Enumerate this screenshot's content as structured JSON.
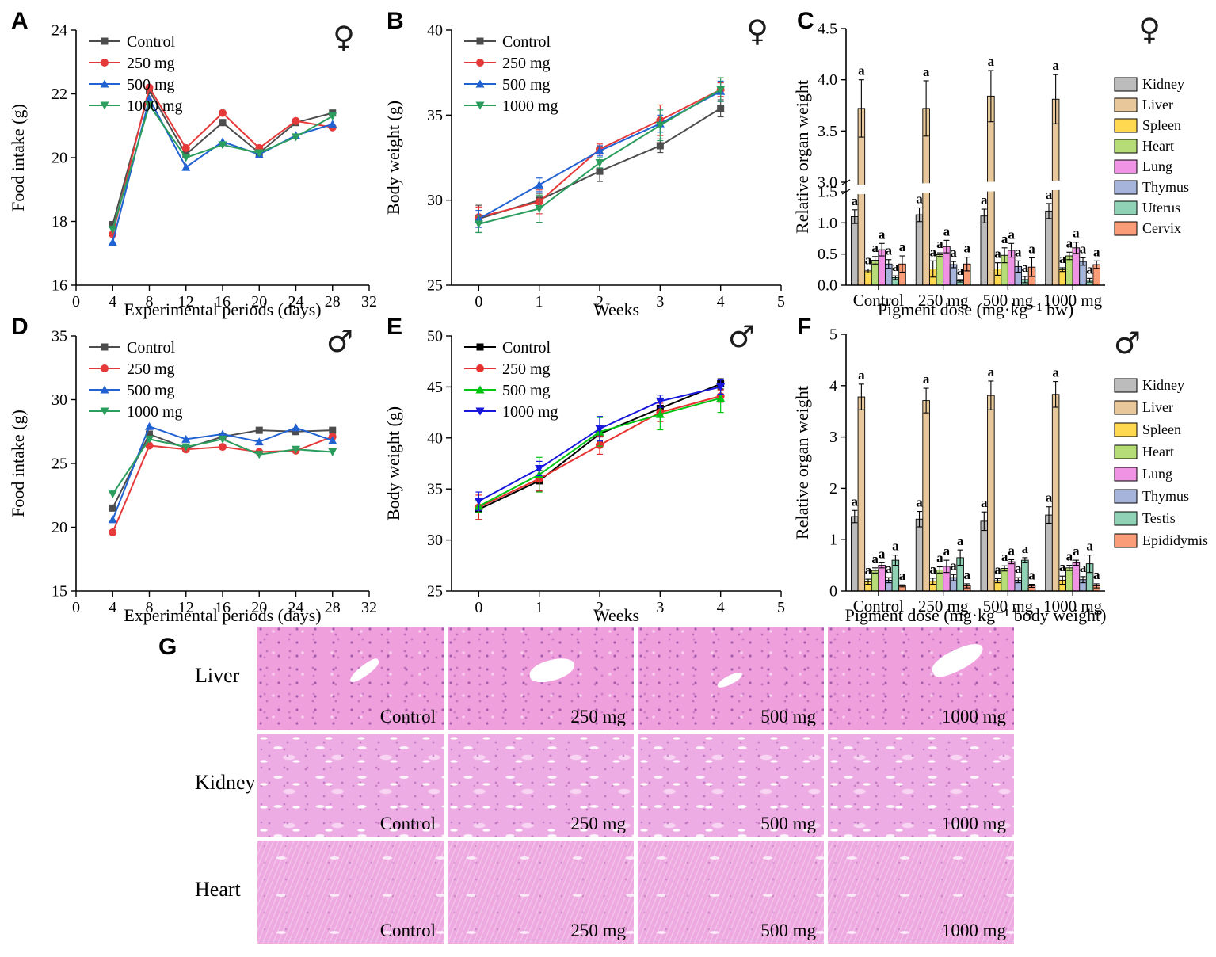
{
  "chart_data": [
    {
      "panel": "A",
      "type": "line",
      "sex_icon": "♀",
      "xlabel": "Experimental periods (days)",
      "ylabel": "Food intake (g)",
      "xlim": [
        0,
        32
      ],
      "xticks": [
        0,
        4,
        8,
        12,
        16,
        20,
        24,
        28,
        32
      ],
      "ylim": [
        16,
        24
      ],
      "yticks": [
        16,
        18,
        20,
        22,
        24
      ],
      "ydec": 0,
      "x": [
        4,
        8,
        12,
        16,
        20,
        24,
        28
      ],
      "series": [
        {
          "name": "Control",
          "color": "#4d4d4d",
          "marker": "square",
          "values": [
            17.9,
            22.1,
            20.1,
            21.1,
            20.15,
            21.1,
            21.4
          ]
        },
        {
          "name": "250 mg",
          "color": "#e63a3a",
          "marker": "circle",
          "values": [
            17.6,
            22.2,
            20.3,
            21.4,
            20.3,
            21.15,
            20.95
          ]
        },
        {
          "name": "500 mg",
          "color": "#2062d2",
          "marker": "triangle-up",
          "values": [
            17.35,
            21.85,
            19.7,
            20.5,
            20.1,
            20.7,
            21.05
          ]
        },
        {
          "name": "1000 mg",
          "color": "#2b9e5e",
          "marker": "triangle-down",
          "values": [
            17.75,
            21.65,
            20.0,
            20.4,
            20.15,
            20.65,
            21.3
          ]
        }
      ]
    },
    {
      "panel": "B",
      "type": "line",
      "sex_icon": "♀",
      "xlabel": "Weeks",
      "ylabel": "Body weight (g)",
      "xlim": [
        -0.45,
        5
      ],
      "xticks": [
        0,
        1,
        2,
        3,
        4,
        5
      ],
      "ylim": [
        25,
        40
      ],
      "yticks": [
        25,
        30,
        35,
        40
      ],
      "ydec": 0,
      "x": [
        0,
        1,
        2,
        3,
        4
      ],
      "series": [
        {
          "name": "Control",
          "color": "#4d4d4d",
          "marker": "square",
          "values": [
            28.9,
            30.0,
            31.7,
            33.2,
            35.4
          ],
          "err": [
            0.8,
            0.4,
            0.6,
            0.4,
            0.5
          ]
        },
        {
          "name": "250 mg",
          "color": "#e63a3a",
          "marker": "circle",
          "values": [
            29.0,
            29.9,
            33.0,
            34.7,
            36.5
          ],
          "err": [
            0.6,
            0.7,
            0.3,
            0.9,
            0.4
          ]
        },
        {
          "name": "500 mg",
          "color": "#2062d2",
          "marker": "triangle-up",
          "values": [
            28.9,
            30.9,
            32.9,
            34.5,
            36.4
          ],
          "err": [
            0.5,
            0.4,
            0.3,
            0.5,
            0.6
          ]
        },
        {
          "name": "1000 mg",
          "color": "#2b9e5e",
          "marker": "triangle-down",
          "values": [
            28.6,
            29.5,
            32.2,
            34.4,
            36.5
          ],
          "err": [
            0.5,
            0.8,
            0.3,
            0.9,
            0.7
          ]
        }
      ]
    },
    {
      "panel": "C",
      "type": "bar",
      "sex_icon": "♀",
      "xlabel": "Pigment dose (mg·kg⁻¹ bw)",
      "ylabel": "Relative organ weight",
      "categories": [
        "Control",
        "250 mg",
        "500 mg",
        "1000 mg"
      ],
      "ydec": 1,
      "sig": "a",
      "ybreak": {
        "lower_max": 1.5,
        "upper_min": 3.0,
        "upper_max": 4.5,
        "yticks_lower": [
          0.0,
          0.5,
          1.0,
          1.5
        ],
        "yticks_upper": [
          3.0,
          3.5,
          4.0,
          4.5
        ]
      },
      "series": [
        {
          "name": "Kidney",
          "color": "#bcbcbc",
          "values": [
            1.1,
            1.13,
            1.11,
            1.19
          ],
          "err": [
            0.11,
            0.11,
            0.11,
            0.12
          ]
        },
        {
          "name": "Liver",
          "color": "#e8c89a",
          "values": [
            3.72,
            3.72,
            3.84,
            3.81
          ],
          "err": [
            0.28,
            0.27,
            0.25,
            0.24
          ]
        },
        {
          "name": "Spleen",
          "color": "#ffd94f",
          "values": [
            0.23,
            0.26,
            0.26,
            0.25
          ],
          "err": [
            0.03,
            0.13,
            0.1,
            0.03
          ]
        },
        {
          "name": "Heart",
          "color": "#b6dc77",
          "values": [
            0.4,
            0.49,
            0.48,
            0.47
          ],
          "err": [
            0.06,
            0.03,
            0.12,
            0.06
          ]
        },
        {
          "name": "Lung",
          "color": "#f093e5",
          "values": [
            0.57,
            0.62,
            0.56,
            0.6
          ],
          "err": [
            0.1,
            0.1,
            0.11,
            0.09
          ]
        },
        {
          "name": "Thymus",
          "color": "#a6b3da",
          "values": [
            0.34,
            0.33,
            0.3,
            0.38
          ],
          "err": [
            0.07,
            0.05,
            0.09,
            0.06
          ]
        },
        {
          "name": "Uterus",
          "color": "#90d2b6",
          "values": [
            0.12,
            0.07,
            0.09,
            0.08
          ],
          "err": [
            0.03,
            0.02,
            0.05,
            0.03
          ]
        },
        {
          "name": "Cervix",
          "color": "#fb9c78",
          "values": [
            0.34,
            0.34,
            0.29,
            0.33
          ],
          "err": [
            0.13,
            0.11,
            0.15,
            0.06
          ]
        }
      ]
    },
    {
      "panel": "D",
      "type": "line",
      "sex_icon": "♂",
      "xlabel": "Experimental periods (days)",
      "ylabel": "Food intake (g)",
      "xlim": [
        0,
        32
      ],
      "xticks": [
        0,
        4,
        8,
        12,
        16,
        20,
        24,
        28,
        32
      ],
      "ylim": [
        15,
        35
      ],
      "yticks": [
        15,
        20,
        25,
        30,
        35
      ],
      "ydec": 0,
      "x": [
        4,
        8,
        12,
        16,
        20,
        24,
        28
      ],
      "series": [
        {
          "name": "Control",
          "color": "#4d4d4d",
          "marker": "square",
          "values": [
            21.5,
            27.3,
            26.2,
            27.1,
            27.6,
            27.5,
            27.6
          ]
        },
        {
          "name": "250 mg",
          "color": "#e63a3a",
          "marker": "circle",
          "values": [
            19.6,
            26.4,
            26.1,
            26.3,
            25.9,
            26.0,
            27.1
          ]
        },
        {
          "name": "500 mg",
          "color": "#2062d2",
          "marker": "triangle-up",
          "values": [
            20.6,
            27.9,
            26.9,
            27.3,
            26.7,
            27.8,
            26.8
          ]
        },
        {
          "name": "1000 mg",
          "color": "#2b9e5e",
          "marker": "triangle-down",
          "values": [
            22.6,
            26.9,
            26.3,
            26.9,
            25.7,
            26.1,
            25.9
          ]
        }
      ]
    },
    {
      "panel": "E",
      "type": "line",
      "sex_icon": "♂",
      "xlabel": "Weeks",
      "ylabel": "Body weight (g)",
      "xlim": [
        -0.45,
        5
      ],
      "xticks": [
        0,
        1,
        2,
        3,
        4,
        5
      ],
      "ylim": [
        25,
        50
      ],
      "yticks": [
        25,
        30,
        35,
        40,
        45,
        50
      ],
      "ydec": 0,
      "x": [
        0,
        1,
        2,
        3,
        4
      ],
      "series": [
        {
          "name": "Control",
          "color": "#000000",
          "marker": "square",
          "values": [
            33.0,
            35.8,
            40.4,
            42.9,
            45.3
          ],
          "err": [
            1.0,
            1.0,
            0.8,
            0.8,
            0.5
          ]
        },
        {
          "name": "250 mg",
          "color": "#e8312e",
          "marker": "circle",
          "values": [
            33.2,
            36.0,
            39.3,
            42.5,
            44.1
          ],
          "err": [
            1.2,
            1.2,
            0.9,
            0.9,
            0.6
          ]
        },
        {
          "name": "500 mg",
          "color": "#00c613",
          "marker": "triangle-up",
          "values": [
            33.3,
            36.4,
            40.6,
            42.3,
            43.9
          ],
          "err": [
            0.6,
            1.7,
            1.4,
            1.5,
            1.4
          ]
        },
        {
          "name": "1000 mg",
          "color": "#1717dd",
          "marker": "triangle-down",
          "values": [
            33.8,
            37.0,
            40.9,
            43.6,
            45.0
          ],
          "err": [
            0.9,
            0.7,
            1.2,
            0.6,
            0.7
          ]
        }
      ]
    },
    {
      "panel": "F",
      "type": "bar",
      "sex_icon": "♂",
      "xlabel": "Pigment dose (mg·kg⁻¹ body weight)",
      "ylabel": "Relative organ weight",
      "categories": [
        "Control",
        "250 mg",
        "500 mg",
        "1000 mg"
      ],
      "ylim": [
        0,
        5
      ],
      "yticks": [
        0,
        1,
        2,
        3,
        4,
        5
      ],
      "ydec": 0,
      "sig": "a",
      "series": [
        {
          "name": "Kidney",
          "color": "#bcbcbc",
          "values": [
            1.45,
            1.4,
            1.36,
            1.48
          ],
          "err": [
            0.12,
            0.15,
            0.18,
            0.16
          ]
        },
        {
          "name": "Liver",
          "color": "#e8c89a",
          "values": [
            3.78,
            3.71,
            3.81,
            3.83
          ],
          "err": [
            0.25,
            0.24,
            0.28,
            0.25
          ]
        },
        {
          "name": "Spleen",
          "color": "#ffd94f",
          "values": [
            0.18,
            0.19,
            0.2,
            0.21
          ],
          "err": [
            0.05,
            0.06,
            0.04,
            0.08
          ]
        },
        {
          "name": "Heart",
          "color": "#b6dc77",
          "values": [
            0.4,
            0.41,
            0.44,
            0.45
          ],
          "err": [
            0.05,
            0.06,
            0.05,
            0.05
          ]
        },
        {
          "name": "Lung",
          "color": "#f093e5",
          "values": [
            0.5,
            0.48,
            0.57,
            0.55
          ],
          "err": [
            0.05,
            0.12,
            0.04,
            0.05
          ]
        },
        {
          "name": "Thymus",
          "color": "#a6b3da",
          "values": [
            0.21,
            0.26,
            0.21,
            0.22
          ],
          "err": [
            0.05,
            0.06,
            0.05,
            0.06
          ]
        },
        {
          "name": "Testis",
          "color": "#90d2b6",
          "values": [
            0.6,
            0.65,
            0.6,
            0.53
          ],
          "err": [
            0.1,
            0.15,
            0.05,
            0.17
          ]
        },
        {
          "name": "Epididymis",
          "color": "#fb9c78",
          "values": [
            0.1,
            0.1,
            0.1,
            0.1
          ],
          "err": [
            0.02,
            0.04,
            0.03,
            0.04
          ]
        }
      ]
    }
  ],
  "histology": {
    "label": "G",
    "rows": [
      {
        "organ": "Liver"
      },
      {
        "organ": "Kidney"
      },
      {
        "organ": "Heart"
      }
    ],
    "doses": [
      "Control",
      "250 mg",
      "500 mg",
      "1000 mg"
    ],
    "stain_colors": {
      "liver_base": "#f09fdd",
      "kidney_base": "#eeace4",
      "heart_base": "#eda9e0",
      "nuclei": "#9a4aa8",
      "highlight": "#f8d7f1"
    }
  }
}
